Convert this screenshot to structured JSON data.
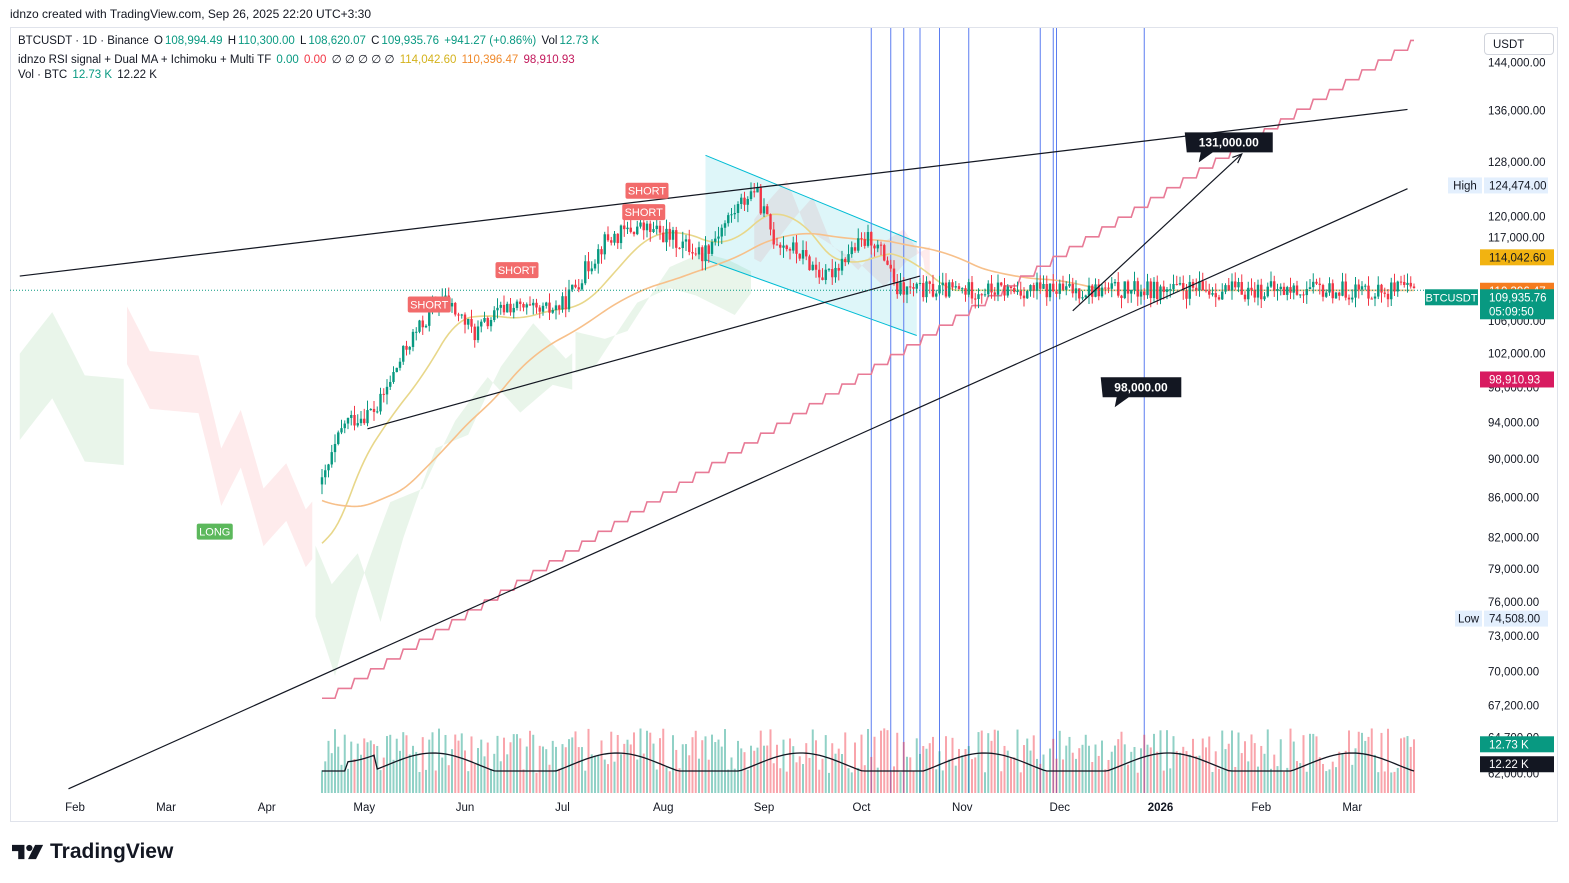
{
  "caption": "idnzo created with TradingView.com, Sep 26, 2025 22:20 UTC+3:30",
  "legend": {
    "symbol_line": "BTCUSDT · 1D · Binance",
    "o_label": "O",
    "o_value": "108,994.49",
    "h_label": "H",
    "h_value": "110,300.00",
    "l_label": "L",
    "l_value": "108,620.07",
    "c_label": "C",
    "c_value": "109,935.76",
    "change": "+941.27 (+0.86%)",
    "vol_label": "Vol",
    "vol_value": "12.73 K",
    "indicator_name": "idnzo RSI signal + Dual MA + Ichimoku + Multi TF",
    "ind_v1": "0.00",
    "ind_v2": "0.00",
    "ind_empty": "∅ ∅ ∅ ∅ ∅",
    "ind_v3": "114,042.60",
    "ind_v4": "110,396.47",
    "ind_v5": "98,910.93",
    "vol_line_label": "Vol · BTC",
    "vol_line_v1": "12.73 K",
    "vol_line_v2": "12.22 K"
  },
  "currency_button": "USDT",
  "brand": "TradingView",
  "chart_data": {
    "type": "candlestick",
    "symbol": "BTCUSDT",
    "interval": "1D",
    "exchange": "Binance",
    "price_axis": {
      "ticks": [
        "144,000.00",
        "136,000.00",
        "128,000.00",
        "120,000.00",
        "117,000.00",
        "106,000.00",
        "102,000.00",
        "98,000.00",
        "94,000.00",
        "90,000.00",
        "86,000.00",
        "82,000.00",
        "79,000.00",
        "76,000.00",
        "73,000.00",
        "70,000.00",
        "67,200.00",
        "64,700.00",
        "62,000.00"
      ],
      "tick_values": [
        144000,
        136000,
        128000,
        120000,
        117000,
        106000,
        102000,
        98000,
        94000,
        90000,
        86000,
        82000,
        79000,
        76000,
        73000,
        70000,
        67200,
        64700,
        62000
      ],
      "ylim": [
        60600,
        150000
      ],
      "scale": "log"
    },
    "time_axis": {
      "labels": [
        "Feb",
        "Mar",
        "Apr",
        "May",
        "Jun",
        "Jul",
        "Aug",
        "Sep",
        "Oct",
        "Nov",
        "Dec",
        "2026",
        "Feb",
        "Mar"
      ],
      "positions_days": [
        17,
        45,
        76,
        106,
        137,
        167,
        198,
        229,
        259,
        290,
        320,
        351,
        382,
        410
      ],
      "bold": [
        "2026"
      ]
    },
    "axis_badges": [
      {
        "label": "High",
        "value": "124,474.00",
        "price": 124474,
        "style": "plain"
      },
      {
        "label": "",
        "value": "114,042.60",
        "price": 114042.6,
        "color": "#f2b311",
        "text_color": "#131722"
      },
      {
        "label": "",
        "value": "110,396.47",
        "price": 110396.47,
        "color": "#f57c1f",
        "text_color": "#ffffff"
      },
      {
        "label": "BTCUSDT",
        "value": "109,935.76",
        "sub": "05:09:50",
        "price": 109935.76,
        "color": "#089981",
        "text_color": "#ffffff"
      },
      {
        "label": "",
        "value": "98,910.93",
        "price": 98910.93,
        "color": "#d81b60",
        "text_color": "#ffffff"
      },
      {
        "label": "Low",
        "value": "74,508.00",
        "price": 74508,
        "style": "plain"
      },
      {
        "label": "",
        "value": "12.73 K",
        "price": 64200,
        "color": "#089981",
        "text_color": "#ffffff"
      },
      {
        "label": "",
        "value": "12.22 K",
        "price": 62700,
        "color": "#131722",
        "text_color": "#ffffff"
      }
    ],
    "callouts": [
      {
        "text": "131,000.00",
        "price": 131000,
        "day": 372
      },
      {
        "text": "98,000.00",
        "price": 98000,
        "day": 345
      }
    ],
    "signals": [
      {
        "text": "SHORT",
        "type": "short",
        "day": 126,
        "price": 108100
      },
      {
        "text": "SHORT",
        "type": "short",
        "day": 153,
        "price": 112600
      },
      {
        "text": "SHORT",
        "type": "short",
        "day": 192,
        "price": 120600
      },
      {
        "text": "SHORT",
        "type": "short",
        "day": 193,
        "price": 123700
      },
      {
        "text": "LONG",
        "type": "long",
        "day": 60,
        "price": 82600
      }
    ],
    "trendlines": [
      {
        "from": [
          0,
          111800
        ],
        "to": [
          427,
          136200
        ]
      },
      {
        "from": [
          107,
          93300
        ],
        "to": [
          277,
          111800
        ]
      },
      {
        "from": [
          15,
          60900
        ],
        "to": [
          427,
          124000
        ]
      }
    ],
    "arrow": {
      "from": [
        324,
        107300
      ],
      "to": [
        376,
        129200
      ]
    },
    "channel": {
      "upper": [
        [
          211,
          129000
        ],
        [
          276,
          116400
        ]
      ],
      "lower": [
        [
          211,
          114000
        ],
        [
          276,
          104200
        ]
      ]
    },
    "vertical_lines_days": [
      262,
      268,
      272,
      277,
      283,
      292,
      314,
      318,
      319,
      346
    ],
    "key_prices": {
      "open": 108994.49,
      "high": 110300,
      "low": 108620.07,
      "close": 109935.76,
      "period_high": 124474,
      "period_low": 74508
    }
  }
}
